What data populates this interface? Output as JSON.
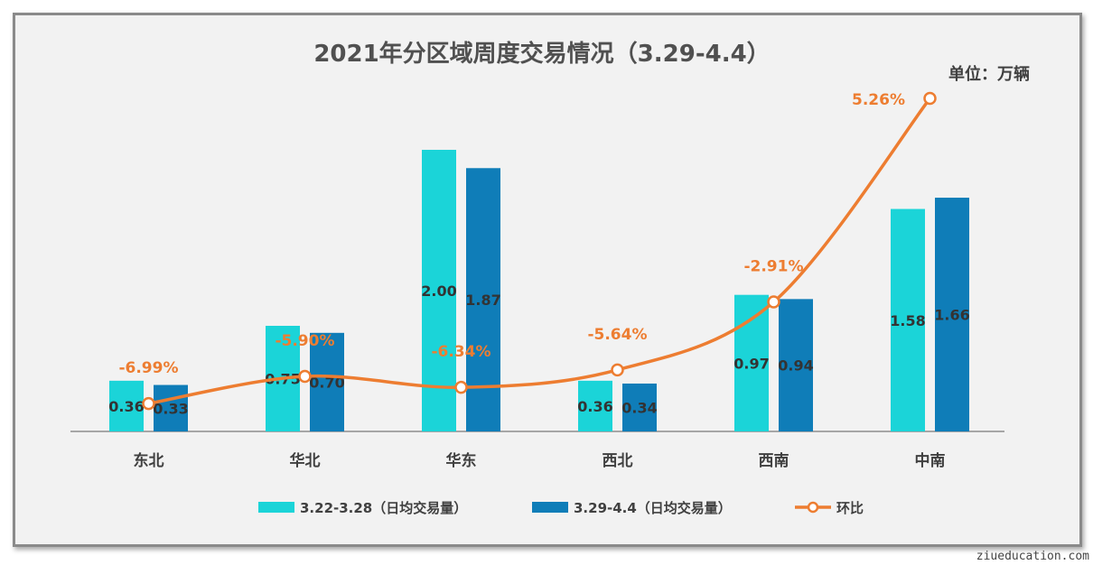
{
  "chart_data": {
    "type": "bar",
    "title": "2021年分区域周度交易情况（3.29-4.4）",
    "unit_label": "单位：万辆",
    "categories": [
      "东北",
      "华北",
      "华东",
      "西北",
      "西南",
      "中南"
    ],
    "series": [
      {
        "name": "3.22-3.28（日均交易量）",
        "color": "#1BD4D8",
        "values": [
          0.36,
          0.75,
          2.0,
          0.36,
          0.97,
          1.58
        ],
        "labels": [
          "0.36",
          "0.75",
          "2.00",
          "0.36",
          "0.97",
          "1.58"
        ]
      },
      {
        "name": "3.29-4.4（日均交易量）",
        "color": "#0F7DB8",
        "values": [
          0.33,
          0.7,
          1.87,
          0.34,
          0.94,
          1.66
        ],
        "labels": [
          "0.33",
          "0.70",
          "1.87",
          "0.34",
          "0.94",
          "1.66"
        ]
      }
    ],
    "line_series": {
      "name": "环比",
      "color": "#ED7D31",
      "secondary_axis": true,
      "values": [
        -6.99,
        -5.9,
        -6.34,
        -5.64,
        -2.91,
        5.26
      ],
      "labels": [
        "-6.99%",
        "-5.90%",
        "-6.34%",
        "-5.64%",
        "-2.91%",
        "5.26%"
      ]
    },
    "ylim": [
      0,
      2.0
    ],
    "y2lim": [
      -8.0,
      5.26
    ],
    "grid": false,
    "legend_position": "bottom"
  },
  "watermark": "ziueducation.com"
}
